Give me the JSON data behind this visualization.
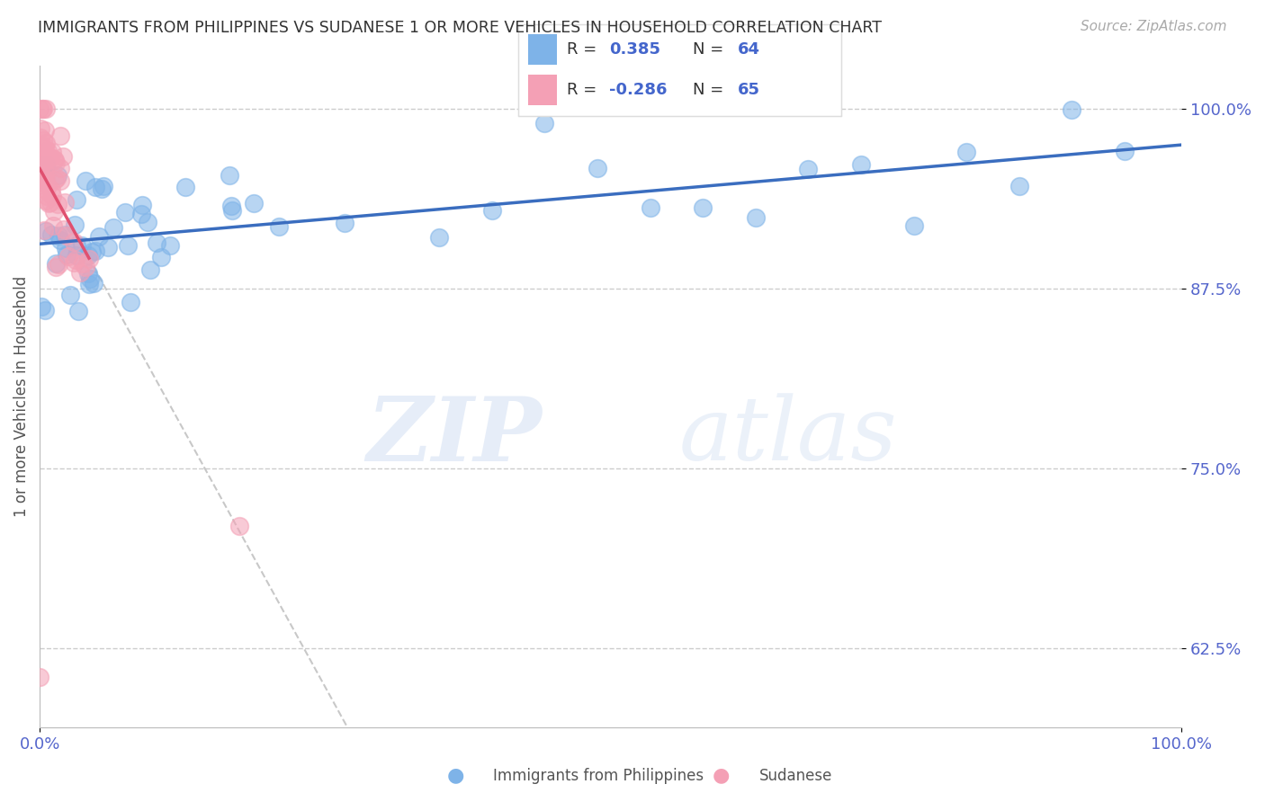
{
  "title": "IMMIGRANTS FROM PHILIPPINES VS SUDANESE 1 OR MORE VEHICLES IN HOUSEHOLD CORRELATION CHART",
  "source": "Source: ZipAtlas.com",
  "ylabel": "1 or more Vehicles in Household",
  "y_ticks": [
    62.5,
    75.0,
    87.5,
    100.0
  ],
  "y_tick_labels": [
    "62.5%",
    "75.0%",
    "87.5%",
    "100.0%"
  ],
  "legend_label1": "Immigrants from Philippines",
  "legend_label2": "Sudanese",
  "R1": 0.385,
  "N1": 64,
  "R2": -0.286,
  "N2": 65,
  "blue_color": "#7EB3E8",
  "pink_color": "#F4A0B5",
  "line_blue": "#3A6DBF",
  "line_pink": "#E05070",
  "background_color": "#FFFFFF"
}
